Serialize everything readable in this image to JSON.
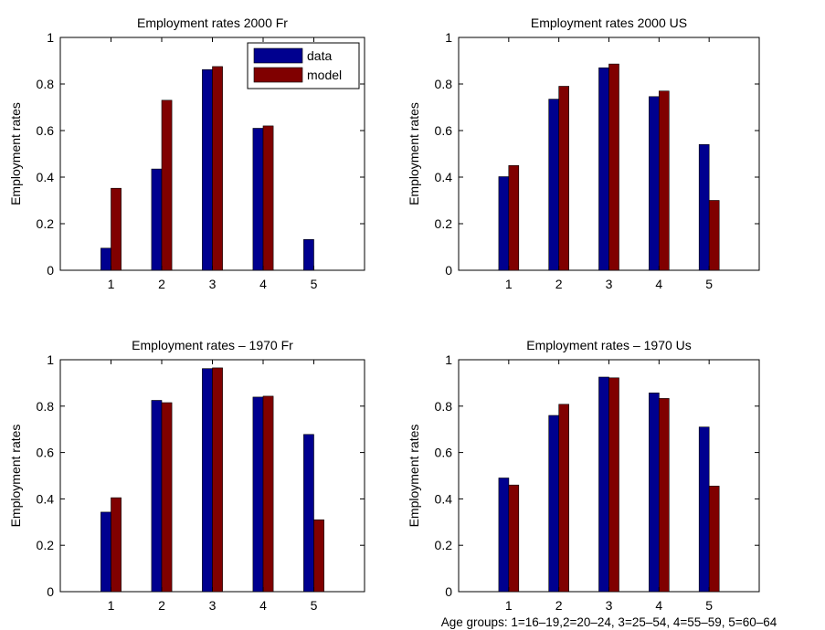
{
  "chart_data": [
    {
      "type": "bar",
      "title": "Employment rates 2000 Fr",
      "xlabel": "",
      "ylabel": "Employment rates",
      "categories": [
        "1",
        "2",
        "3",
        "4",
        "5"
      ],
      "ylim": [
        0,
        1
      ],
      "yticks": [
        "0",
        "0.2",
        "0.4",
        "0.6",
        "0.8",
        "1"
      ],
      "legend": {
        "position": "top-right",
        "entries": [
          "data",
          "model"
        ]
      },
      "series": [
        {
          "name": "data",
          "color": "#00008f",
          "values": [
            0.095,
            0.435,
            0.862,
            0.61,
            0.132
          ]
        },
        {
          "name": "model",
          "color": "#800000",
          "values": [
            0.352,
            0.73,
            0.875,
            0.62,
            0.0
          ]
        }
      ]
    },
    {
      "type": "bar",
      "title": "Employment rates 2000 US",
      "xlabel": "",
      "ylabel": "Employment rates",
      "categories": [
        "1",
        "2",
        "3",
        "4",
        "5"
      ],
      "ylim": [
        0,
        1
      ],
      "yticks": [
        "0",
        "0.2",
        "0.4",
        "0.6",
        "0.8",
        "1"
      ],
      "series": [
        {
          "name": "data",
          "color": "#00008f",
          "values": [
            0.402,
            0.735,
            0.87,
            0.746,
            0.54
          ]
        },
        {
          "name": "model",
          "color": "#800000",
          "values": [
            0.45,
            0.79,
            0.886,
            0.77,
            0.3
          ]
        }
      ]
    },
    {
      "type": "bar",
      "title": "Employment rates – 1970 Fr",
      "xlabel": "",
      "ylabel": "Employment rates",
      "categories": [
        "1",
        "2",
        "3",
        "4",
        "5"
      ],
      "ylim": [
        0,
        1
      ],
      "yticks": [
        "0",
        "0.2",
        "0.4",
        "0.6",
        "0.8",
        "1"
      ],
      "series": [
        {
          "name": "data",
          "color": "#00008f",
          "values": [
            0.343,
            0.825,
            0.962,
            0.839,
            0.678
          ]
        },
        {
          "name": "model",
          "color": "#800000",
          "values": [
            0.405,
            0.815,
            0.965,
            0.843,
            0.31
          ]
        }
      ]
    },
    {
      "type": "bar",
      "title": "Employment rates – 1970 Us",
      "xlabel": "Age groups: 1=16–19,2=20–24, 3=25–54, 4=55–59, 5=60–64",
      "ylabel": "Employment rates",
      "categories": [
        "1",
        "2",
        "3",
        "4",
        "5"
      ],
      "ylim": [
        0,
        1
      ],
      "yticks": [
        "0",
        "0.2",
        "0.4",
        "0.6",
        "0.8",
        "1"
      ],
      "series": [
        {
          "name": "data",
          "color": "#00008f",
          "values": [
            0.49,
            0.76,
            0.925,
            0.857,
            0.71
          ]
        },
        {
          "name": "model",
          "color": "#800000",
          "values": [
            0.46,
            0.808,
            0.922,
            0.833,
            0.455
          ]
        }
      ]
    }
  ]
}
